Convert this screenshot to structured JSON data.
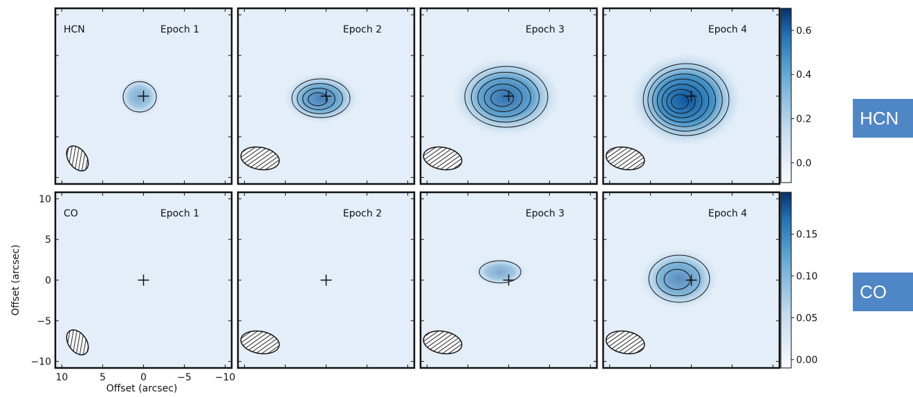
{
  "chart_data": {
    "type": "image-grid",
    "xlabel": "Offset (arcsec)",
    "ylabel": "Offset (arcsec)",
    "xlim": [
      10.8,
      -10.8
    ],
    "ylim": [
      -10.8,
      10.8
    ],
    "xticks": [
      10,
      5,
      0,
      {
        "value": -5,
        "label": "−5"
      },
      {
        "value": -10,
        "label": "−10"
      }
    ],
    "yticks": [
      {
        "value": -10,
        "label": "−10"
      },
      {
        "value": -5,
        "label": "−5"
      },
      0,
      5,
      10
    ],
    "rows": [
      {
        "molecule": "HCN",
        "panels": [
          "Epoch 1",
          "Epoch 2",
          "Epoch 3",
          "Epoch 4"
        ],
        "colorbar": {
          "ylim": [
            -0.09,
            0.7
          ],
          "yticks": [
            {
              "value": 0,
              "label": "0.0"
            },
            0.2,
            0.4,
            0.6
          ]
        },
        "button": "HCN"
      },
      {
        "molecule": "CO",
        "panels": [
          "Epoch 1",
          "Epoch 2",
          "Epoch 3",
          "Epoch 4"
        ],
        "colorbar": {
          "ylim": [
            -0.01,
            0.2
          ],
          "yticks": [
            {
              "value": 0,
              "label": "0.00"
            },
            0.05,
            {
              "value": 0.1,
              "label": "0.10"
            },
            0.15
          ]
        },
        "button": "CO"
      }
    ]
  }
}
